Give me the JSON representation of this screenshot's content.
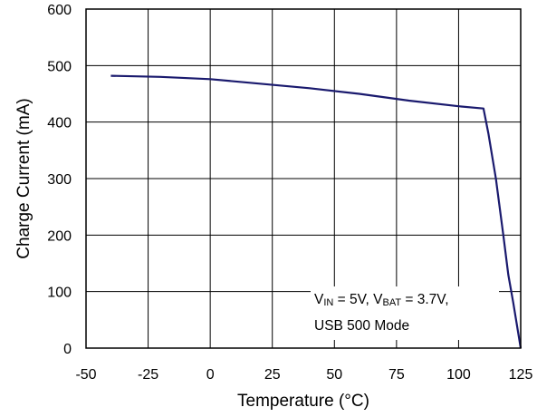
{
  "chart_data": {
    "type": "line",
    "xlabel": "Temperature (°C)",
    "ylabel": "Charge Current (mA)",
    "xlim": [
      -50,
      125
    ],
    "ylim": [
      0,
      600
    ],
    "xticks": [
      -50,
      -25,
      0,
      25,
      50,
      75,
      100,
      125
    ],
    "yticks": [
      0,
      100,
      200,
      300,
      400,
      500,
      600
    ],
    "grid": true,
    "series": [
      {
        "color": "#1a1a6e",
        "x": [
          -40,
          -20,
          0,
          20,
          40,
          60,
          80,
          100,
          110,
          112,
          115,
          118,
          120,
          122,
          125
        ],
        "y": [
          482,
          480,
          476,
          468,
          460,
          450,
          438,
          428,
          424,
          380,
          300,
          200,
          130,
          80,
          0
        ]
      }
    ],
    "annotation": {
      "vin_label": "V",
      "vin_sub": "IN",
      "vin_value": " = 5V, ",
      "vbat_label": "V",
      "vbat_sub": "BAT",
      "vbat_value": " = 3.7V,",
      "line2": "USB 500 Mode"
    }
  }
}
